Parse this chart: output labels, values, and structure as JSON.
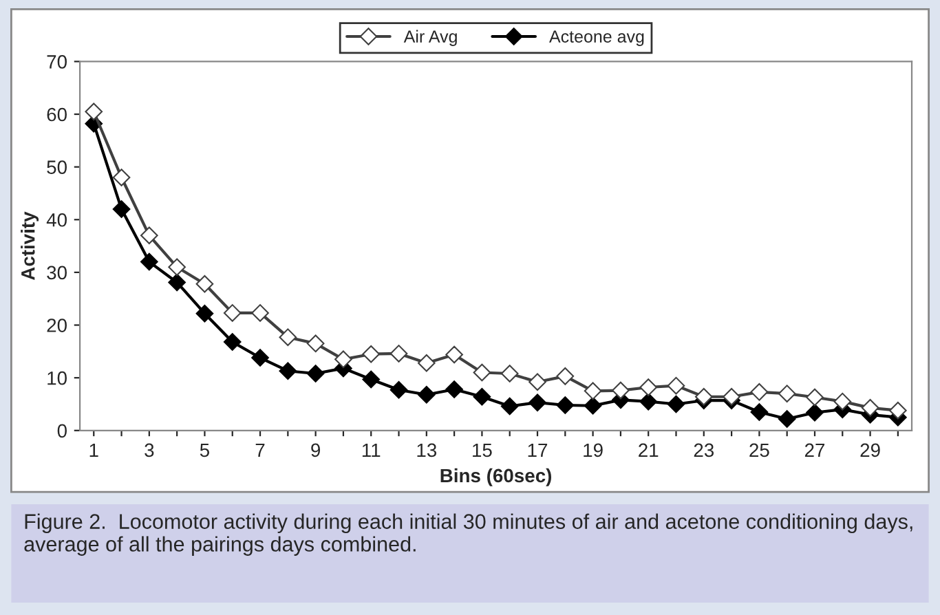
{
  "chart_data": {
    "type": "line",
    "xlabel": "Bins (60sec)",
    "ylabel": "Activity",
    "categories": [
      "1",
      null,
      "3",
      null,
      "5",
      null,
      "7",
      null,
      "9",
      null,
      "11",
      null,
      "13",
      null,
      "15",
      null,
      "17",
      null,
      "19",
      null,
      "21",
      null,
      "23",
      null,
      "25",
      null,
      "27",
      null,
      "29",
      null
    ],
    "series": [
      {
        "name": "Air Avg",
        "color": "#404040",
        "values": [
          60.5,
          48,
          37,
          31,
          27.8,
          22.3,
          22.3,
          17.7,
          16.5,
          13.5,
          14.5,
          14.6,
          12.8,
          14.4,
          11,
          10.8,
          9.2,
          10.3,
          7.5,
          7.6,
          8.2,
          8.5,
          6.4,
          6.4,
          7.3,
          7,
          6.3,
          5.5,
          4.3,
          3.8
        ]
      },
      {
        "name": "Acteone avg",
        "color": "#000000",
        "values": [
          58.2,
          42,
          32,
          28.1,
          22.2,
          16.8,
          13.8,
          11.3,
          10.8,
          11.8,
          9.7,
          7.7,
          6.8,
          7.8,
          6.4,
          4.6,
          5.3,
          4.8,
          4.7,
          5.8,
          5.5,
          5,
          5.7,
          5.7,
          3.5,
          2.2,
          3.4,
          4,
          3,
          2.5
        ]
      }
    ],
    "ylim": [
      0,
      70
    ],
    "yticks": [
      0,
      10,
      20,
      30,
      40,
      50,
      60,
      70
    ],
    "marker": "diamond",
    "line_style": "solid",
    "grid": false,
    "legend": "top",
    "annotations": [
      "Figure 2.  Locomotor activity during each initial 30 minutes of air and acetone conditioning days, average of all the pairings days combined."
    ]
  }
}
